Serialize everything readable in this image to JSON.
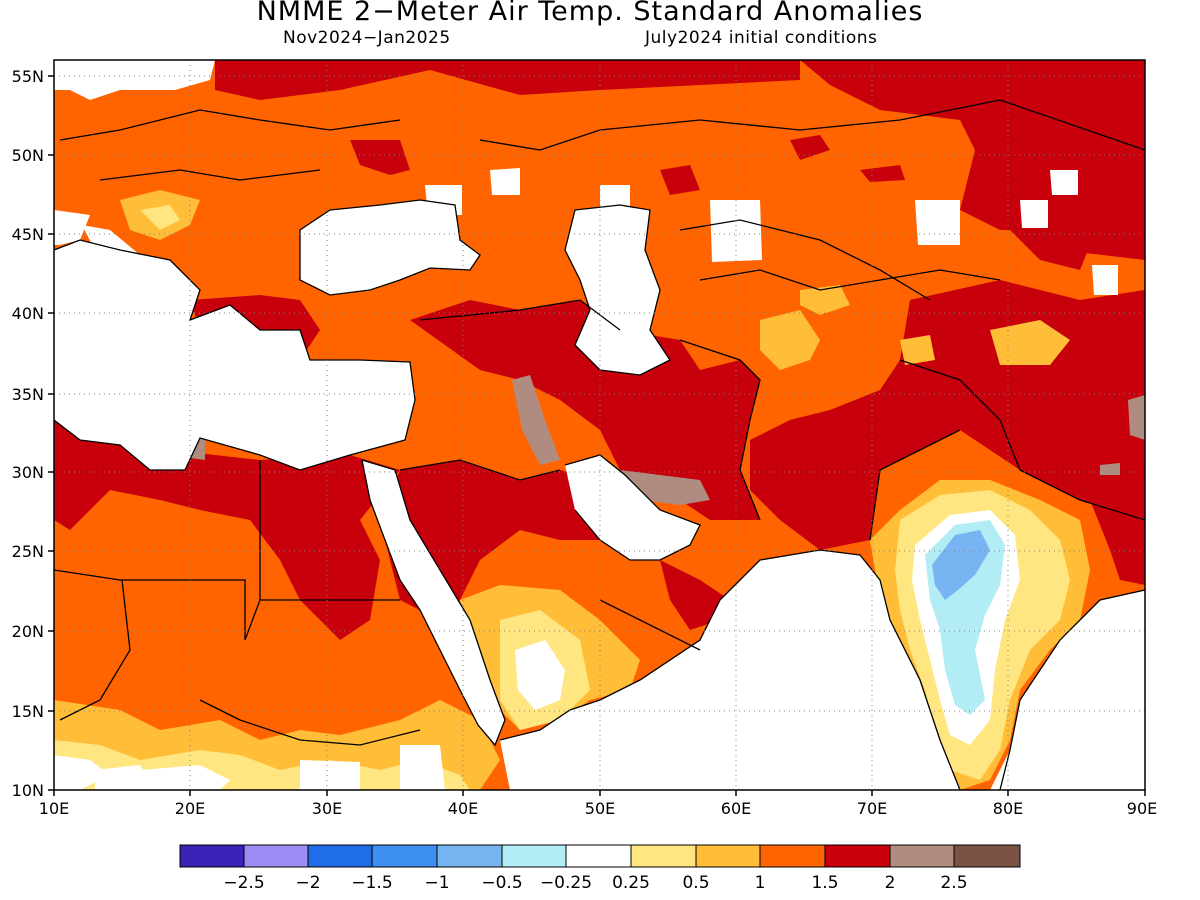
{
  "title": "NMME 2−Meter Air Temp. Standard Anomalies",
  "period": "Nov2024−Jan2025",
  "initial_conditions": "July2024 initial conditions",
  "lat_labels": [
    "55N",
    "50N",
    "45N",
    "40N",
    "35N",
    "30N",
    "25N",
    "20N",
    "15N",
    "10N"
  ],
  "lon_labels": [
    "10E",
    "20E",
    "30E",
    "40E",
    "50E",
    "60E",
    "70E",
    "80E",
    "90E"
  ],
  "colorbar": {
    "colors": [
      "#3a24b8",
      "#9e8cf5",
      "#1f6ee8",
      "#3d8ff0",
      "#78b4f2",
      "#b2ecf4",
      "#ffffff",
      "#ffe680",
      "#ffbd38",
      "#ff6400",
      "#c8000c",
      "#b08c80",
      "#7a5244"
    ],
    "labels": [
      "−2.5",
      "−2",
      "−1.5",
      "−1",
      "−0.5",
      "−0.25",
      "0.25",
      "0.5",
      "1",
      "1.5",
      "2",
      "2.5"
    ]
  },
  "legend_colors": {
    "white": "#ffffff",
    "yellow": "#ffe680",
    "light_orange": "#ffbd38",
    "orange": "#ff6400",
    "dark_red": "#c8000c",
    "brown_gray": "#b08c80",
    "light_cyan": "#b2ecf4",
    "light_blue": "#78b4f2"
  }
}
